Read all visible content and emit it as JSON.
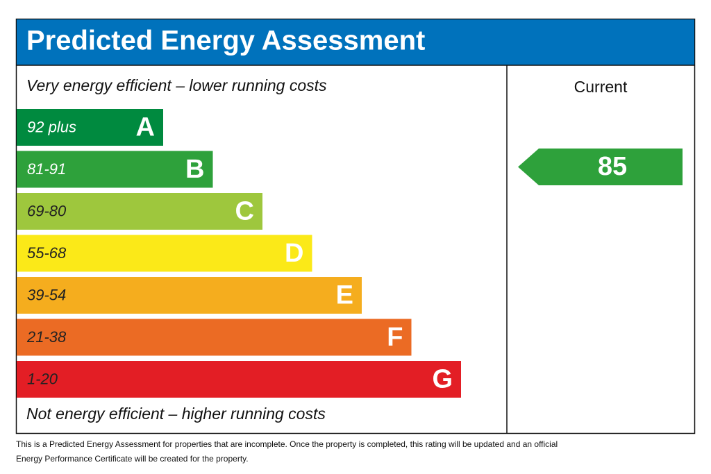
{
  "header": {
    "title": "Predicted Energy Assessment",
    "color": "#0072bc"
  },
  "top_label": "Very energy efficient – lower running costs",
  "bottom_label": "Not energy efficient – higher running costs",
  "bands": [
    {
      "range": "92 plus",
      "letter": "A",
      "color": "#008a3f",
      "text_color": "#ffffff"
    },
    {
      "range": "81-91",
      "letter": "B",
      "color": "#2ea13b",
      "text_color": "#ffffff"
    },
    {
      "range": "69-80",
      "letter": "C",
      "color": "#9ec73d",
      "text_color": "#222222"
    },
    {
      "range": "55-68",
      "letter": "D",
      "color": "#fbe918",
      "text_color": "#222222"
    },
    {
      "range": "39-54",
      "letter": "E",
      "color": "#f5ad1e",
      "text_color": "#222222"
    },
    {
      "range": "21-38",
      "letter": "F",
      "color": "#eb6b24",
      "text_color": "#222222"
    },
    {
      "range": "1-20",
      "letter": "G",
      "color": "#e31e25",
      "text_color": "#222222"
    }
  ],
  "current": {
    "label": "Current",
    "value": "85",
    "color": "#2ea13b"
  },
  "footnote": "This is a Predicted Energy Assessment for properties that are incomplete. Once the property is completed, this rating will be updated and an official Energy Performance Certificate will be created for the property."
}
